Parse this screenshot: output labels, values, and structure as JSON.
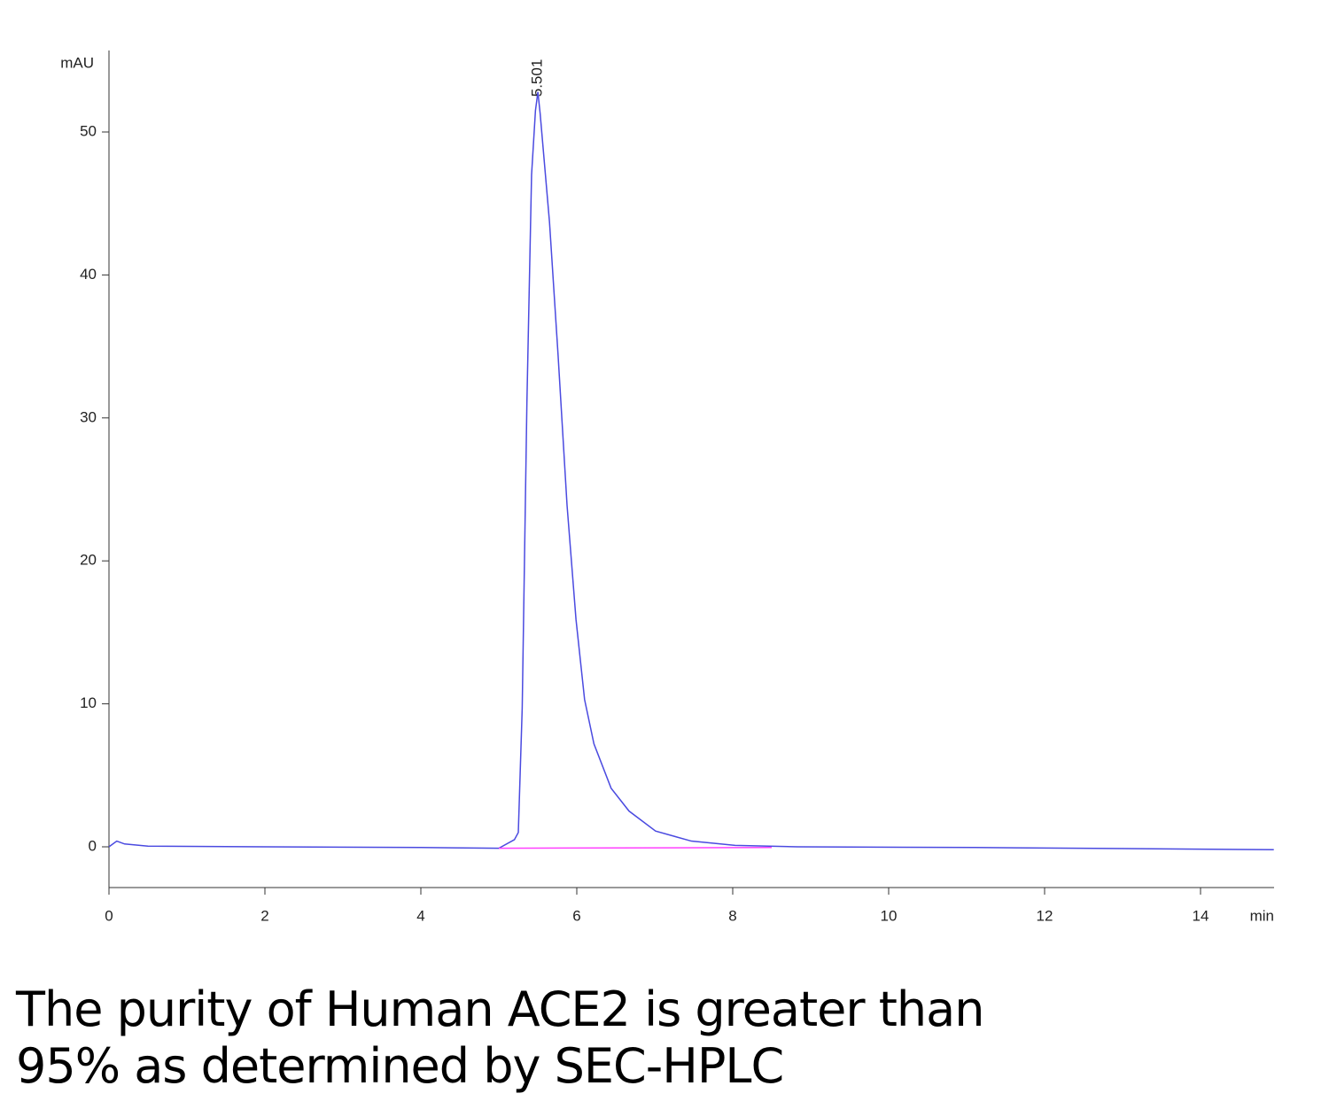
{
  "chart_data": {
    "type": "line",
    "x_unit": "min",
    "y_unit": "mAU",
    "xlim": [
      0,
      15
    ],
    "ylim": [
      -2.85,
      55.7
    ],
    "xticks": [
      0,
      2,
      4,
      6,
      8,
      10,
      12,
      14
    ],
    "yticks": [
      0,
      10,
      20,
      30,
      40,
      50
    ],
    "series": [
      {
        "color": "#4a4ae0",
        "x": [
          0,
          0.1,
          0.2,
          0.5,
          2,
          4,
          5,
          5.2,
          5.25,
          5.3,
          5.36,
          5.42,
          5.47,
          5.501,
          5.53,
          5.65,
          5.76,
          5.875,
          5.99,
          6.1,
          6.22,
          6.44,
          6.67,
          7.01,
          7.47,
          8.03,
          8.83,
          11.1,
          14.94
        ],
        "values": [
          0,
          0.4,
          0.2,
          0.05,
          0,
          -0.05,
          -0.1,
          0.5,
          1,
          9.7,
          31,
          47,
          51.5,
          52.8,
          51.3,
          43.7,
          34.4,
          23.9,
          15.9,
          10.3,
          7.2,
          4.1,
          2.5,
          1.1,
          0.4,
          0.1,
          0,
          -0.05,
          -0.2
        ]
      },
      {
        "color": "#ff40ff",
        "x": [
          5.0,
          8.5
        ],
        "values": [
          -0.1,
          -0.05
        ]
      }
    ],
    "annotations": [
      {
        "x": 5.501,
        "label": "5.501"
      }
    ],
    "caption": [
      "The purity of Human ACE2 is greater than",
      "95% as determined by SEC-HPLC"
    ]
  }
}
